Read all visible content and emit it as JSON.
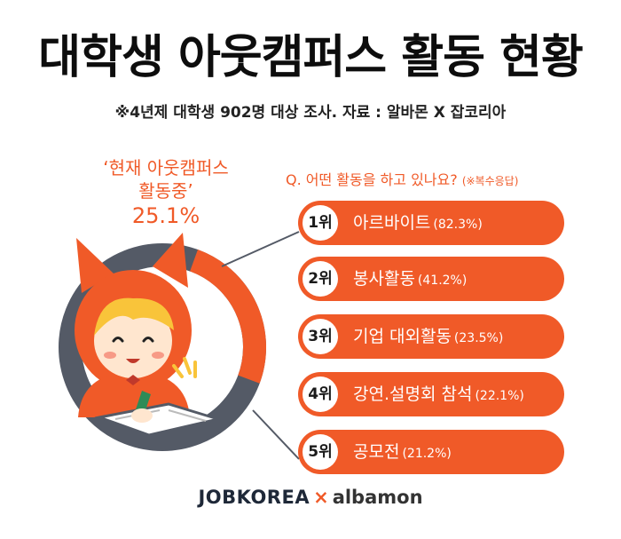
{
  "title": "대학생 아웃캠퍼스 활동 현황",
  "subtitle": "※4년제 대학생  902명 대상 조사. 자료 : 알바몬 X 잡코리아",
  "colors": {
    "accent": "#f05a28",
    "ring": "#545a66",
    "dark": "#111111"
  },
  "icons": [
    "mascot-illustration",
    "sparkle-icon",
    "pencil-icon",
    "book-icon"
  ],
  "chart_data": [
    {
      "type": "pie",
      "label_line1": "‘현재 아웃캠퍼스",
      "label_line2": "활동중’",
      "value_label": "25.1%",
      "value": 25.1,
      "total": 100
    },
    {
      "type": "bar",
      "title": "Q. 어떤 활동을 하고 있나요?",
      "note": "(※복수응답)",
      "categories": [
        "아르바이트",
        "봉사활동",
        "기업 대외활동",
        "강연.설명회 참석",
        "공모전"
      ],
      "ranks": [
        "1위",
        "2위",
        "3위",
        "4위",
        "5위"
      ],
      "value_labels": [
        "(82.3%)",
        "(41.2%)",
        "(23.5%)",
        "(22.1%)",
        "(21.2%)"
      ],
      "values": [
        82.3,
        41.2,
        23.5,
        22.1,
        21.2
      ]
    }
  ],
  "footer": {
    "brand1": "JOBKOREA",
    "sep": "×",
    "brand2": "albamon"
  }
}
